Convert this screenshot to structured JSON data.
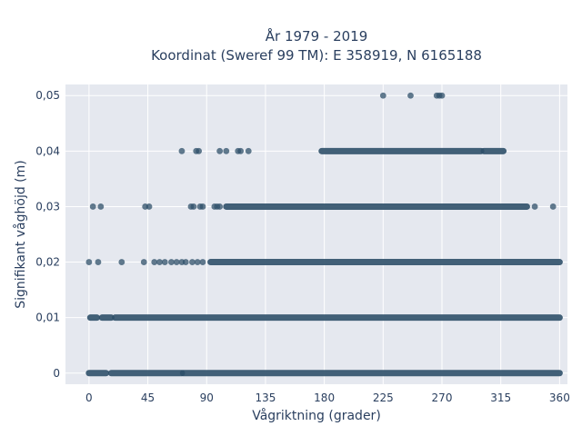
{
  "chart_data": {
    "type": "scatter",
    "title_line1": "År 1979 - 2019",
    "title_line2": "Koordinat (Sweref 99 TM): E 358919, N 6165188",
    "xlabel": "Vågriktning (grader)",
    "ylabel": "Signifikant våghöjd (m)",
    "xlim": [
      -18,
      366
    ],
    "ylim": [
      -0.002,
      0.052
    ],
    "x_ticks": [
      0,
      45,
      90,
      135,
      180,
      225,
      270,
      315,
      360
    ],
    "x_tick_labels": [
      "0",
      "45",
      "90",
      "135",
      "180",
      "225",
      "270",
      "315",
      "360"
    ],
    "y_ticks": [
      0,
      0.01,
      0.02,
      0.03,
      0.04,
      0.05
    ],
    "y_tick_labels": [
      "0",
      "0,01",
      "0,02",
      "0,03",
      "0,04",
      "0,05"
    ],
    "grid": true,
    "marker_color": "#2f5069",
    "plot_background": "#e5e8ef",
    "series": [
      {
        "y": 0.05,
        "ranges": [],
        "points": [
          225,
          246,
          266,
          268,
          270
        ]
      },
      {
        "y": 0.04,
        "ranges": [
          [
            178,
            300
          ],
          [
            302,
            317
          ]
        ],
        "points": [
          71,
          82,
          84,
          100,
          105,
          114,
          116,
          122
        ]
      },
      {
        "y": 0.03,
        "ranges": [
          [
            105,
            335
          ]
        ],
        "points": [
          3,
          9,
          43,
          46,
          78,
          80,
          85,
          87,
          96,
          98,
          100,
          341,
          355
        ]
      },
      {
        "y": 0.02,
        "ranges": [
          [
            93,
            360
          ]
        ],
        "points": [
          0,
          7,
          25,
          42,
          50,
          54,
          58,
          63,
          67,
          71,
          74,
          79,
          83,
          87
        ]
      },
      {
        "y": 0.01,
        "ranges": [
          [
            1,
            6
          ],
          [
            10,
            17
          ],
          [
            20,
            360
          ]
        ],
        "points": []
      },
      {
        "y": 0.0,
        "ranges": [
          [
            0,
            13
          ],
          [
            17,
            71
          ],
          [
            72,
            360
          ]
        ],
        "points": []
      }
    ]
  }
}
